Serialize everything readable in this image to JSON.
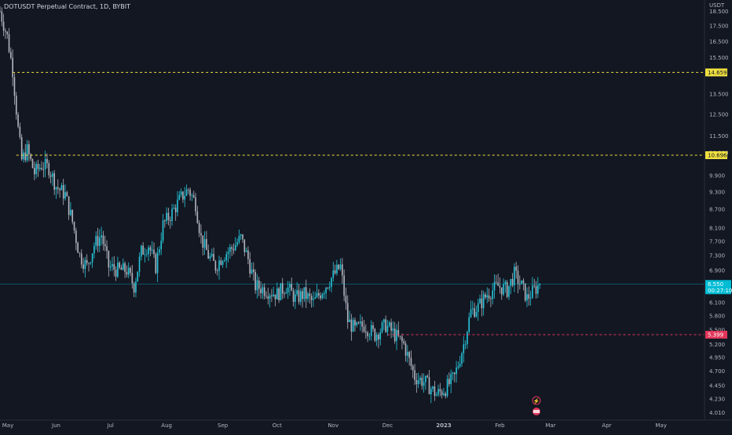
{
  "header": {
    "title": "DOTUSDT Perpetual Contract, 1D, BYBIT"
  },
  "axis": {
    "currency_label": "USDT"
  },
  "chart_data": {
    "type": "candlestick",
    "title": "DOTUSDT Perpetual Contract, 1D, BYBIT",
    "y_scale": "log",
    "ylim": [
      3.9,
      19.2
    ],
    "y_ticks": [
      "18.500",
      "17.500",
      "16.500",
      "15.500",
      "13.500",
      "12.500",
      "11.500",
      "10.800",
      "9.900",
      "9.300",
      "8.700",
      "8.100",
      "7.700",
      "7.300",
      "6.900",
      "6.100",
      "5.800",
      "5.500",
      "5.200",
      "4.950",
      "4.700",
      "4.450",
      "4.230",
      "4.010"
    ],
    "x_ticks": [
      "May",
      "Jun",
      "Jul",
      "Aug",
      "Sep",
      "Oct",
      "Nov",
      "Dec",
      "2023",
      "Feb",
      "Mar",
      "Apr",
      "May"
    ],
    "x_tick_dates": [
      "2022-05-01",
      "2022-06-01",
      "2022-07-01",
      "2022-08-01",
      "2022-09-01",
      "2022-10-01",
      "2022-11-01",
      "2022-12-01",
      "2023-01-01",
      "2023-02-01",
      "2023-03-01",
      "2023-04-01",
      "2023-05-01"
    ],
    "x_range": [
      "2022-05-01",
      "2023-05-25"
    ],
    "up_color": "#26c6da",
    "down_color": "#b2b5be",
    "horizontal_lines": [
      {
        "value": 14.659,
        "label": "14.659",
        "color": "#f0e040",
        "style": "dashed"
      },
      {
        "value": 10.696,
        "label": "10.696",
        "color": "#f0e040",
        "style": "dashed"
      },
      {
        "value": 5.399,
        "label": "5.399",
        "color": "#e0365a",
        "style": "dashed"
      }
    ],
    "last_price": {
      "value": 6.55,
      "label": "6.550",
      "countdown": "00:27:10",
      "color": "#00bcd4"
    },
    "series_path": [
      {
        "date": "2022-05-01",
        "value": 18.5
      },
      {
        "date": "2022-05-05",
        "value": 16.8
      },
      {
        "date": "2022-05-08",
        "value": 14.8
      },
      {
        "date": "2022-05-11",
        "value": 11.8
      },
      {
        "date": "2022-05-13",
        "value": 10.5
      },
      {
        "date": "2022-05-16",
        "value": 10.9
      },
      {
        "date": "2022-05-20",
        "value": 10.0
      },
      {
        "date": "2022-05-24",
        "value": 10.3
      },
      {
        "date": "2022-05-28",
        "value": 10.2
      },
      {
        "date": "2022-06-01",
        "value": 9.5
      },
      {
        "date": "2022-06-06",
        "value": 9.2
      },
      {
        "date": "2022-06-10",
        "value": 8.3
      },
      {
        "date": "2022-06-14",
        "value": 7.3
      },
      {
        "date": "2022-06-18",
        "value": 7.0
      },
      {
        "date": "2022-06-22",
        "value": 7.6
      },
      {
        "date": "2022-06-26",
        "value": 7.9
      },
      {
        "date": "2022-06-30",
        "value": 7.0
      },
      {
        "date": "2022-07-05",
        "value": 6.9
      },
      {
        "date": "2022-07-10",
        "value": 6.9
      },
      {
        "date": "2022-07-14",
        "value": 6.5
      },
      {
        "date": "2022-07-18",
        "value": 7.4
      },
      {
        "date": "2022-07-22",
        "value": 7.6
      },
      {
        "date": "2022-07-26",
        "value": 7.0
      },
      {
        "date": "2022-07-30",
        "value": 8.2
      },
      {
        "date": "2022-08-04",
        "value": 8.6
      },
      {
        "date": "2022-08-09",
        "value": 9.1
      },
      {
        "date": "2022-08-13",
        "value": 9.4
      },
      {
        "date": "2022-08-17",
        "value": 8.9
      },
      {
        "date": "2022-08-20",
        "value": 7.8
      },
      {
        "date": "2022-08-24",
        "value": 7.3
      },
      {
        "date": "2022-08-28",
        "value": 7.0
      },
      {
        "date": "2022-09-01",
        "value": 7.3
      },
      {
        "date": "2022-09-06",
        "value": 7.5
      },
      {
        "date": "2022-09-11",
        "value": 7.8
      },
      {
        "date": "2022-09-15",
        "value": 7.2
      },
      {
        "date": "2022-09-19",
        "value": 6.5
      },
      {
        "date": "2022-09-25",
        "value": 6.4
      },
      {
        "date": "2022-10-01",
        "value": 6.3
      },
      {
        "date": "2022-10-06",
        "value": 6.5
      },
      {
        "date": "2022-10-11",
        "value": 6.2
      },
      {
        "date": "2022-10-16",
        "value": 6.3
      },
      {
        "date": "2022-10-21",
        "value": 6.1
      },
      {
        "date": "2022-10-26",
        "value": 6.4
      },
      {
        "date": "2022-10-31",
        "value": 6.7
      },
      {
        "date": "2022-11-05",
        "value": 7.0
      },
      {
        "date": "2022-11-09",
        "value": 5.7
      },
      {
        "date": "2022-11-13",
        "value": 5.5
      },
      {
        "date": "2022-11-18",
        "value": 5.6
      },
      {
        "date": "2022-11-24",
        "value": 5.4
      },
      {
        "date": "2022-11-30",
        "value": 5.6
      },
      {
        "date": "2022-12-05",
        "value": 5.4
      },
      {
        "date": "2022-12-10",
        "value": 5.2
      },
      {
        "date": "2022-12-16",
        "value": 4.6
      },
      {
        "date": "2022-12-22",
        "value": 4.5
      },
      {
        "date": "2022-12-28",
        "value": 4.3
      },
      {
        "date": "2023-01-02",
        "value": 4.4
      },
      {
        "date": "2023-01-07",
        "value": 4.6
      },
      {
        "date": "2023-01-12",
        "value": 5.2
      },
      {
        "date": "2023-01-16",
        "value": 5.9
      },
      {
        "date": "2023-01-20",
        "value": 6.0
      },
      {
        "date": "2023-01-25",
        "value": 6.3
      },
      {
        "date": "2023-01-31",
        "value": 6.5
      },
      {
        "date": "2023-02-05",
        "value": 6.4
      },
      {
        "date": "2023-02-09",
        "value": 6.8
      },
      {
        "date": "2023-02-13",
        "value": 6.5
      },
      {
        "date": "2023-02-16",
        "value": 6.2
      },
      {
        "date": "2023-02-20",
        "value": 6.4
      },
      {
        "date": "2023-02-23",
        "value": 6.55
      }
    ]
  }
}
